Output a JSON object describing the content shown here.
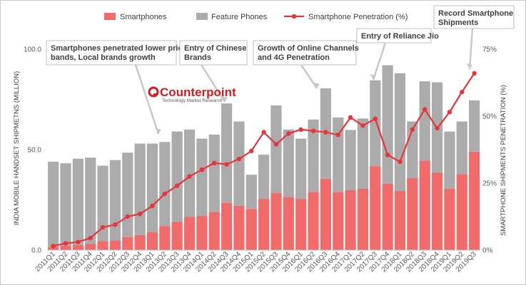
{
  "chart_data": {
    "type": "bar",
    "stacked": true,
    "categories": [
      "2011Q1",
      "2011Q2",
      "2011Q3",
      "2011Q4",
      "2012Q1",
      "2012Q2",
      "2012Q3",
      "2012Q4",
      "2013Q1",
      "2013Q2",
      "2013Q3",
      "2013Q4",
      "2014Q1",
      "2014Q2",
      "2014Q3",
      "2014Q4",
      "2015Q1",
      "2015Q2",
      "2015Q3",
      "2015Q4",
      "2016Q1",
      "2016Q2",
      "2016Q3",
      "2016Q4",
      "2017Q1",
      "2017Q2",
      "2017Q3",
      "2017Q4",
      "2018Q1",
      "2018Q2",
      "2018Q3",
      "2018Q4",
      "2019Q1",
      "2019Q2",
      "2019Q3"
    ],
    "series": [
      {
        "name": "Smartphones",
        "type": "bar",
        "axis": "left",
        "color": "#f26b6b",
        "values": [
          1.5,
          2.2,
          2.5,
          3.0,
          4.5,
          4.8,
          6.5,
          7.5,
          9.0,
          12.0,
          14.0,
          16.5,
          17.0,
          19.0,
          23.5,
          22.0,
          20.5,
          25.5,
          28.5,
          26.5,
          25.5,
          29.0,
          35.5,
          29.0,
          29.8,
          30.5,
          41.8,
          33.0,
          29.5,
          35.8,
          44.5,
          38.5,
          30.5,
          37.8,
          49.0
        ]
      },
      {
        "name": "Feature Phones",
        "type": "bar",
        "axis": "left",
        "color": "#ababab",
        "values": [
          42.5,
          41.0,
          43.0,
          43.0,
          37.5,
          40.0,
          42.0,
          45.5,
          44.0,
          41.8,
          45.0,
          43.5,
          38.5,
          38.5,
          49.5,
          42.0,
          17.0,
          22.0,
          43.5,
          33.5,
          30.0,
          36.0,
          45.0,
          37.0,
          30.0,
          35.0,
          42.7,
          59.0,
          58.5,
          28.2,
          39.5,
          45.0,
          28.5,
          26.2,
          25.5
        ]
      },
      {
        "name": "Smartphone Penetration (%)",
        "type": "line",
        "axis": "right",
        "color": "#e8353a",
        "values": [
          1.5,
          2.5,
          3.0,
          4.5,
          8.5,
          9.5,
          12.5,
          13.5,
          16.5,
          21.0,
          24.0,
          27.5,
          30.0,
          32.5,
          32.0,
          34.0,
          37.0,
          44.0,
          39.5,
          43.5,
          45.0,
          44.5,
          44.0,
          43.0,
          49.5,
          46.5,
          49.0,
          35.5,
          33.0,
          45.0,
          52.5,
          45.5,
          51.5,
          59.0,
          66.0
        ]
      }
    ],
    "ylabel": "INDIA MOBILE HANDSET SHIPMETNS (MILLION)",
    "y2label": "SMARTPHONE SHIPMENTS PENETRATION (%)",
    "ylim": [
      0,
      100
    ],
    "y2lim": [
      0,
      75
    ],
    "yticks": [
      "0.0",
      "50.0",
      "100.0"
    ],
    "y2ticks": [
      "0%",
      "25%",
      "50%",
      "75%"
    ],
    "legend_position": "top",
    "grid": false,
    "annotations": [
      {
        "id": "local-brands",
        "lines": [
          "Smartphones penetrated lower price",
          "bands, Local brands growth"
        ],
        "points_to": "2013Q2"
      },
      {
        "id": "chinese-brands",
        "lines": [
          "Entry of Chinese",
          "Brands"
        ],
        "points_to": "2014Q3"
      },
      {
        "id": "online-4g",
        "lines": [
          "Growth of Online Channels",
          "and 4G Penetration"
        ],
        "points_to": "2016Q3"
      },
      {
        "id": "jio",
        "lines": [
          "Entry of Reliance Jio"
        ],
        "points_to": "2017Q3"
      },
      {
        "id": "record",
        "lines": [
          "Record Smartphone",
          "Shipments"
        ],
        "points_to": "2019Q3"
      }
    ]
  },
  "logo": {
    "name": "Counterpoint",
    "tagline": "Technology Market Research"
  }
}
